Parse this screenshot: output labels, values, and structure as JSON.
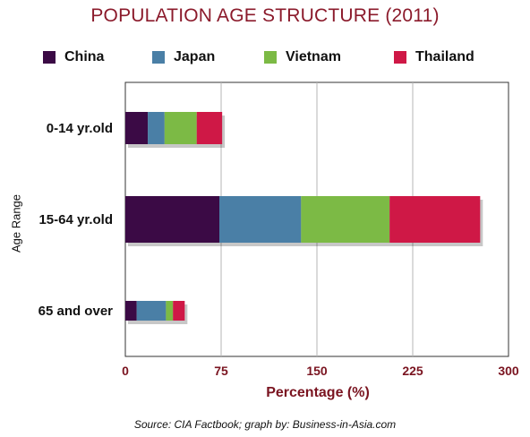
{
  "chart_data": {
    "type": "bar",
    "orientation": "horizontal",
    "stacked": true,
    "title": "POPULATION AGE STRUCTURE (2011)",
    "xlabel": "Percentage (%)",
    "ylabel": "Age Range",
    "categories": [
      "0-14 yr.old",
      "15-64 yr.old",
      "65 and over"
    ],
    "series": [
      {
        "name": "China",
        "color": "#3b0a45",
        "values": [
          17.6,
          73.6,
          8.9
        ]
      },
      {
        "name": "Japan",
        "color": "#4a7fa6",
        "values": [
          13.1,
          64.0,
          22.9
        ]
      },
      {
        "name": "Vietnam",
        "color": "#7cba45",
        "values": [
          25.2,
          69.3,
          5.5
        ]
      },
      {
        "name": "Thailand",
        "color": "#cf1846",
        "values": [
          19.9,
          70.9,
          9.2
        ]
      }
    ],
    "xlim": [
      0,
      300
    ],
    "xticks": [
      "0",
      "75",
      "150",
      "225",
      "300"
    ],
    "grid": true,
    "legend_position": "top"
  },
  "source": "Source: CIA Factbook; graph by: Business-in-Asia.com"
}
